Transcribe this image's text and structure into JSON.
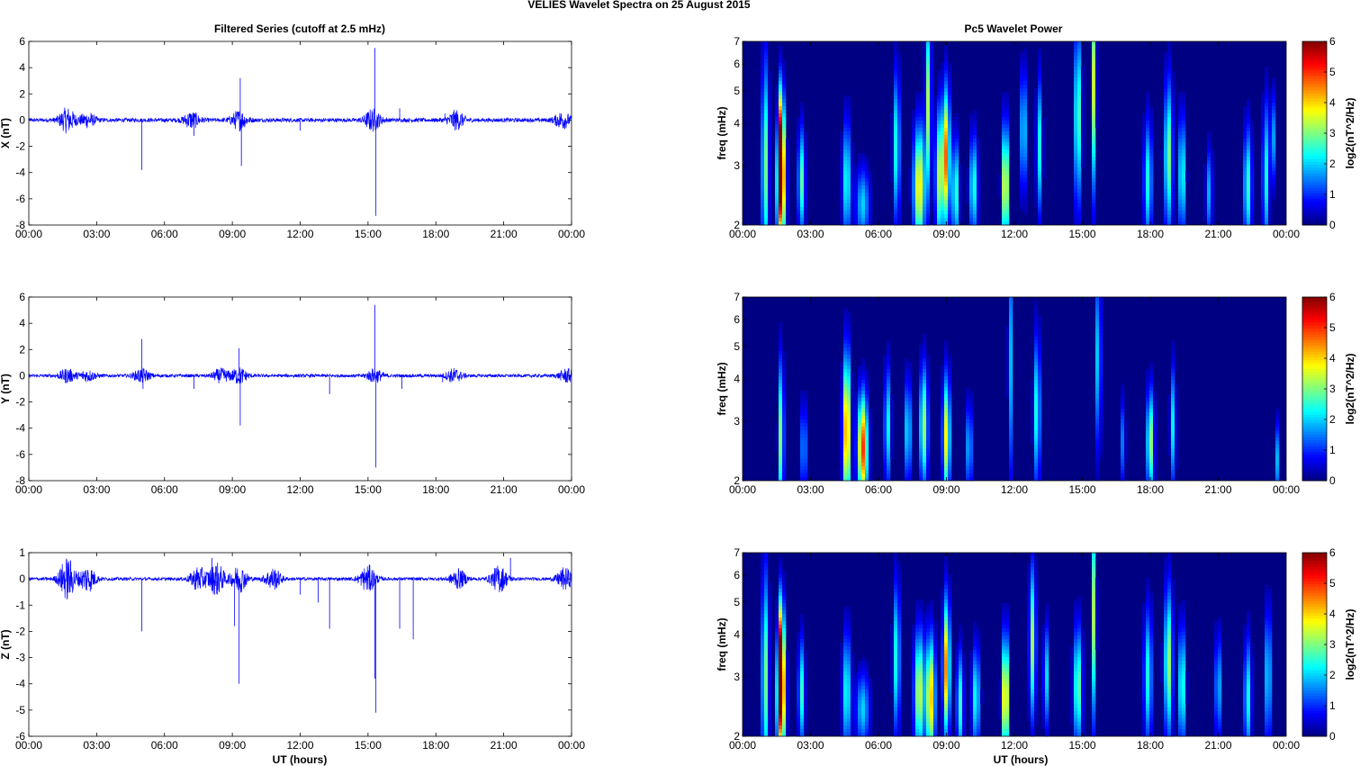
{
  "figure": {
    "title": "VELIES Wavelet Spectra on 25 August    2015",
    "left_title": "Filtered Series (cutoff at 2.5 mHz)",
    "right_title": "Pc5 Wavelet Power",
    "xlabel": "UT (hours)"
  },
  "chart_data": [
    {
      "type": "line",
      "name": "filtered-x",
      "ylabel": "X (nT)",
      "xlim": [
        0,
        24
      ],
      "ylim": [
        -8,
        6
      ],
      "yticks": [
        "6",
        "4",
        "2",
        "0",
        "-2",
        "-4",
        "-6",
        "-8"
      ],
      "xticks": [
        "00:00",
        "03:00",
        "06:00",
        "09:00",
        "12:00",
        "15:00",
        "18:00",
        "21:00",
        "00:00"
      ],
      "color": "#0000ff",
      "baseline_amp": 0.15,
      "bursts": [
        [
          1.7,
          0.9
        ],
        [
          2.6,
          0.5
        ],
        [
          7.2,
          0.6
        ],
        [
          9.3,
          0.7
        ],
        [
          15.2,
          0.8
        ],
        [
          18.9,
          0.7
        ],
        [
          23.6,
          0.6
        ]
      ],
      "spikes": [
        [
          5.0,
          -3.8
        ],
        [
          7.3,
          -1.2
        ],
        [
          9.35,
          3.2
        ],
        [
          9.4,
          -3.5
        ],
        [
          12.0,
          -0.8
        ],
        [
          15.3,
          5.5
        ],
        [
          15.35,
          -7.3
        ],
        [
          16.4,
          0.9
        ],
        [
          18.4,
          0.5
        ]
      ]
    },
    {
      "type": "line",
      "name": "filtered-y",
      "ylabel": "Y (nT)",
      "xlim": [
        0,
        24
      ],
      "ylim": [
        -8,
        6
      ],
      "yticks": [
        "6",
        "4",
        "2",
        "0",
        "-2",
        "-4",
        "-6",
        "-8"
      ],
      "xticks": [
        "00:00",
        "03:00",
        "06:00",
        "09:00",
        "12:00",
        "15:00",
        "18:00",
        "21:00",
        "00:00"
      ],
      "color": "#0000ff",
      "baseline_amp": 0.12,
      "bursts": [
        [
          1.7,
          0.5
        ],
        [
          2.6,
          0.4
        ],
        [
          5.0,
          0.5
        ],
        [
          8.5,
          0.5
        ],
        [
          9.3,
          0.6
        ],
        [
          15.3,
          0.5
        ],
        [
          18.8,
          0.5
        ],
        [
          23.8,
          0.5
        ]
      ],
      "spikes": [
        [
          5.0,
          2.8
        ],
        [
          5.05,
          -1.0
        ],
        [
          7.3,
          -1.0
        ],
        [
          9.3,
          2.1
        ],
        [
          9.35,
          -3.8
        ],
        [
          13.3,
          -1.4
        ],
        [
          15.3,
          5.4
        ],
        [
          15.35,
          -7.0
        ],
        [
          16.5,
          -1.0
        ],
        [
          18.3,
          -0.5
        ]
      ]
    },
    {
      "type": "line",
      "name": "filtered-z",
      "ylabel": "Z (nT)",
      "xlim": [
        0,
        24
      ],
      "ylim": [
        -6,
        1
      ],
      "yticks": [
        "1",
        "0",
        "-1",
        "-2",
        "-3",
        "-4",
        "-5",
        "-6"
      ],
      "xticks": [
        "00:00",
        "03:00",
        "06:00",
        "09:00",
        "12:00",
        "15:00",
        "18:00",
        "21:00",
        "00:00"
      ],
      "color": "#0000ff",
      "baseline_amp": 0.06,
      "bursts": [
        [
          1.7,
          0.8
        ],
        [
          2.6,
          0.5
        ],
        [
          7.5,
          0.45
        ],
        [
          8.3,
          0.6
        ],
        [
          9.3,
          0.5
        ],
        [
          10.8,
          0.4
        ],
        [
          15.0,
          0.5
        ],
        [
          19.0,
          0.35
        ],
        [
          20.8,
          0.5
        ],
        [
          23.7,
          0.4
        ]
      ],
      "spikes": [
        [
          5.0,
          -2.0
        ],
        [
          8.1,
          0.8
        ],
        [
          9.1,
          -1.8
        ],
        [
          9.3,
          -4.0
        ],
        [
          12.0,
          -0.6
        ],
        [
          12.8,
          -0.9
        ],
        [
          13.3,
          -1.9
        ],
        [
          15.3,
          -3.8
        ],
        [
          15.35,
          -5.1
        ],
        [
          16.4,
          -1.9
        ],
        [
          17.0,
          -2.3
        ],
        [
          21.3,
          0.8
        ]
      ]
    },
    {
      "type": "heatmap",
      "name": "wavelet-x",
      "ylabel": "freq (mHz)",
      "colorbar_label": "log2(nT^2/Hz)",
      "yscale": "log",
      "xlim": [
        0,
        24
      ],
      "ylim": [
        2,
        7
      ],
      "yticks": [
        "7",
        "6",
        "5",
        "4",
        "3",
        "2"
      ],
      "xticks": [
        "00:00",
        "03:00",
        "06:00",
        "09:00",
        "12:00",
        "15:00",
        "18:00",
        "21:00",
        "00:00"
      ],
      "clim": [
        0,
        6
      ],
      "cticks": [
        "6",
        "5",
        "4",
        "3",
        "2",
        "1",
        "0"
      ],
      "blobs": [
        [
          1.0,
          3.0,
          0.15,
          0.7,
          3.0
        ],
        [
          1.7,
          2.6,
          0.18,
          0.4,
          6.0
        ],
        [
          1.7,
          3.8,
          0.12,
          0.35,
          4.2
        ],
        [
          2.6,
          2.7,
          0.15,
          0.35,
          2.8
        ],
        [
          4.6,
          2.7,
          0.18,
          0.4,
          2.5
        ],
        [
          5.3,
          2.3,
          0.3,
          0.25,
          2.0
        ],
        [
          6.8,
          3.4,
          0.14,
          0.5,
          2.6
        ],
        [
          7.8,
          2.6,
          0.25,
          0.4,
          4.0
        ],
        [
          8.2,
          4.6,
          0.12,
          0.6,
          3.2
        ],
        [
          8.7,
          2.8,
          0.18,
          0.45,
          3.4
        ],
        [
          9.0,
          3.2,
          0.15,
          0.45,
          4.5
        ],
        [
          9.4,
          2.5,
          0.15,
          0.35,
          2.8
        ],
        [
          10.2,
          2.6,
          0.18,
          0.35,
          2.5
        ],
        [
          11.6,
          2.6,
          0.14,
          0.4,
          4.4
        ],
        [
          12.4,
          3.8,
          0.12,
          0.4,
          2.6
        ],
        [
          13.1,
          3.4,
          0.12,
          0.45,
          2.4
        ],
        [
          14.8,
          4.2,
          0.15,
          0.6,
          3.0
        ],
        [
          15.5,
          5.2,
          0.1,
          0.7,
          3.4
        ],
        [
          17.9,
          2.7,
          0.18,
          0.4,
          2.4
        ],
        [
          18.8,
          3.2,
          0.18,
          0.5,
          3.0
        ],
        [
          19.4,
          2.8,
          0.15,
          0.4,
          2.6
        ],
        [
          20.6,
          2.5,
          0.14,
          0.3,
          1.8
        ],
        [
          22.3,
          2.6,
          0.18,
          0.4,
          2.6
        ],
        [
          23.1,
          2.8,
          0.14,
          0.5,
          2.4
        ],
        [
          23.4,
          3.6,
          0.1,
          0.3,
          2.0
        ]
      ]
    },
    {
      "type": "heatmap",
      "name": "wavelet-y",
      "ylabel": "freq (mHz)",
      "colorbar_label": "log2(nT^2/Hz)",
      "yscale": "log",
      "xlim": [
        0,
        24
      ],
      "ylim": [
        2,
        7
      ],
      "yticks": [
        "7",
        "6",
        "5",
        "4",
        "3",
        "2"
      ],
      "xticks": [
        "00:00",
        "03:00",
        "06:00",
        "09:00",
        "12:00",
        "15:00",
        "18:00",
        "21:00",
        "00:00"
      ],
      "clim": [
        0,
        6
      ],
      "cticks": [
        "6",
        "5",
        "4",
        "3",
        "2",
        "1",
        "0"
      ],
      "blobs": [
        [
          1.7,
          2.7,
          0.12,
          0.5,
          3.2
        ],
        [
          2.7,
          2.5,
          0.12,
          0.3,
          2.0
        ],
        [
          4.6,
          2.8,
          0.16,
          0.5,
          5.0
        ],
        [
          5.3,
          2.5,
          0.22,
          0.35,
          5.0
        ],
        [
          6.4,
          2.9,
          0.14,
          0.4,
          2.4
        ],
        [
          7.3,
          2.8,
          0.14,
          0.35,
          2.4
        ],
        [
          8.0,
          2.9,
          0.18,
          0.4,
          3.2
        ],
        [
          9.0,
          2.7,
          0.16,
          0.4,
          3.8
        ],
        [
          10.0,
          2.5,
          0.14,
          0.3,
          2.0
        ],
        [
          11.8,
          4.5,
          0.08,
          0.8,
          2.4
        ],
        [
          13.0,
          3.2,
          0.14,
          0.5,
          2.6
        ],
        [
          15.7,
          4.6,
          0.12,
          0.6,
          2.2
        ],
        [
          16.8,
          2.6,
          0.1,
          0.3,
          1.6
        ],
        [
          18.0,
          2.6,
          0.16,
          0.35,
          3.2
        ],
        [
          19.0,
          2.9,
          0.12,
          0.4,
          2.2
        ],
        [
          23.6,
          2.3,
          0.1,
          0.25,
          1.8
        ]
      ]
    },
    {
      "type": "heatmap",
      "name": "wavelet-z",
      "ylabel": "freq (mHz)",
      "colorbar_label": "log2(nT^2/Hz)",
      "yscale": "log",
      "xlim": [
        0,
        24
      ],
      "ylim": [
        2,
        7
      ],
      "yticks": [
        "7",
        "6",
        "5",
        "4",
        "3",
        "2"
      ],
      "xticks": [
        "00:00",
        "03:00",
        "06:00",
        "09:00",
        "12:00",
        "15:00",
        "18:00",
        "21:00",
        "00:00"
      ],
      "clim": [
        0,
        6
      ],
      "cticks": [
        "6",
        "5",
        "4",
        "3",
        "2",
        "1",
        "0"
      ],
      "blobs": [
        [
          1.0,
          3.0,
          0.15,
          0.7,
          3.0
        ],
        [
          1.7,
          2.6,
          0.18,
          0.4,
          6.0
        ],
        [
          1.7,
          3.8,
          0.12,
          0.35,
          4.2
        ],
        [
          2.6,
          2.7,
          0.14,
          0.35,
          2.6
        ],
        [
          4.6,
          2.7,
          0.18,
          0.4,
          2.5
        ],
        [
          5.3,
          2.4,
          0.3,
          0.25,
          2.0
        ],
        [
          6.8,
          3.4,
          0.14,
          0.5,
          2.6
        ],
        [
          7.8,
          2.7,
          0.22,
          0.4,
          3.6
        ],
        [
          8.3,
          2.6,
          0.2,
          0.4,
          4.2
        ],
        [
          9.0,
          3.2,
          0.15,
          0.45,
          4.5
        ],
        [
          9.6,
          2.5,
          0.15,
          0.35,
          2.6
        ],
        [
          10.3,
          2.6,
          0.18,
          0.35,
          2.4
        ],
        [
          11.6,
          2.6,
          0.14,
          0.4,
          4.8
        ],
        [
          12.8,
          3.8,
          0.14,
          0.5,
          3.2
        ],
        [
          13.4,
          3.0,
          0.12,
          0.35,
          2.2
        ],
        [
          14.8,
          2.8,
          0.18,
          0.4,
          3.0
        ],
        [
          15.5,
          4.6,
          0.1,
          0.7,
          3.2
        ],
        [
          17.9,
          3.0,
          0.18,
          0.45,
          2.4
        ],
        [
          18.8,
          3.3,
          0.18,
          0.5,
          3.2
        ],
        [
          19.4,
          2.8,
          0.15,
          0.4,
          2.8
        ],
        [
          21.0,
          2.8,
          0.14,
          0.35,
          2.0
        ],
        [
          22.3,
          2.6,
          0.16,
          0.4,
          2.4
        ],
        [
          23.2,
          3.0,
          0.12,
          0.45,
          2.6
        ]
      ]
    }
  ]
}
